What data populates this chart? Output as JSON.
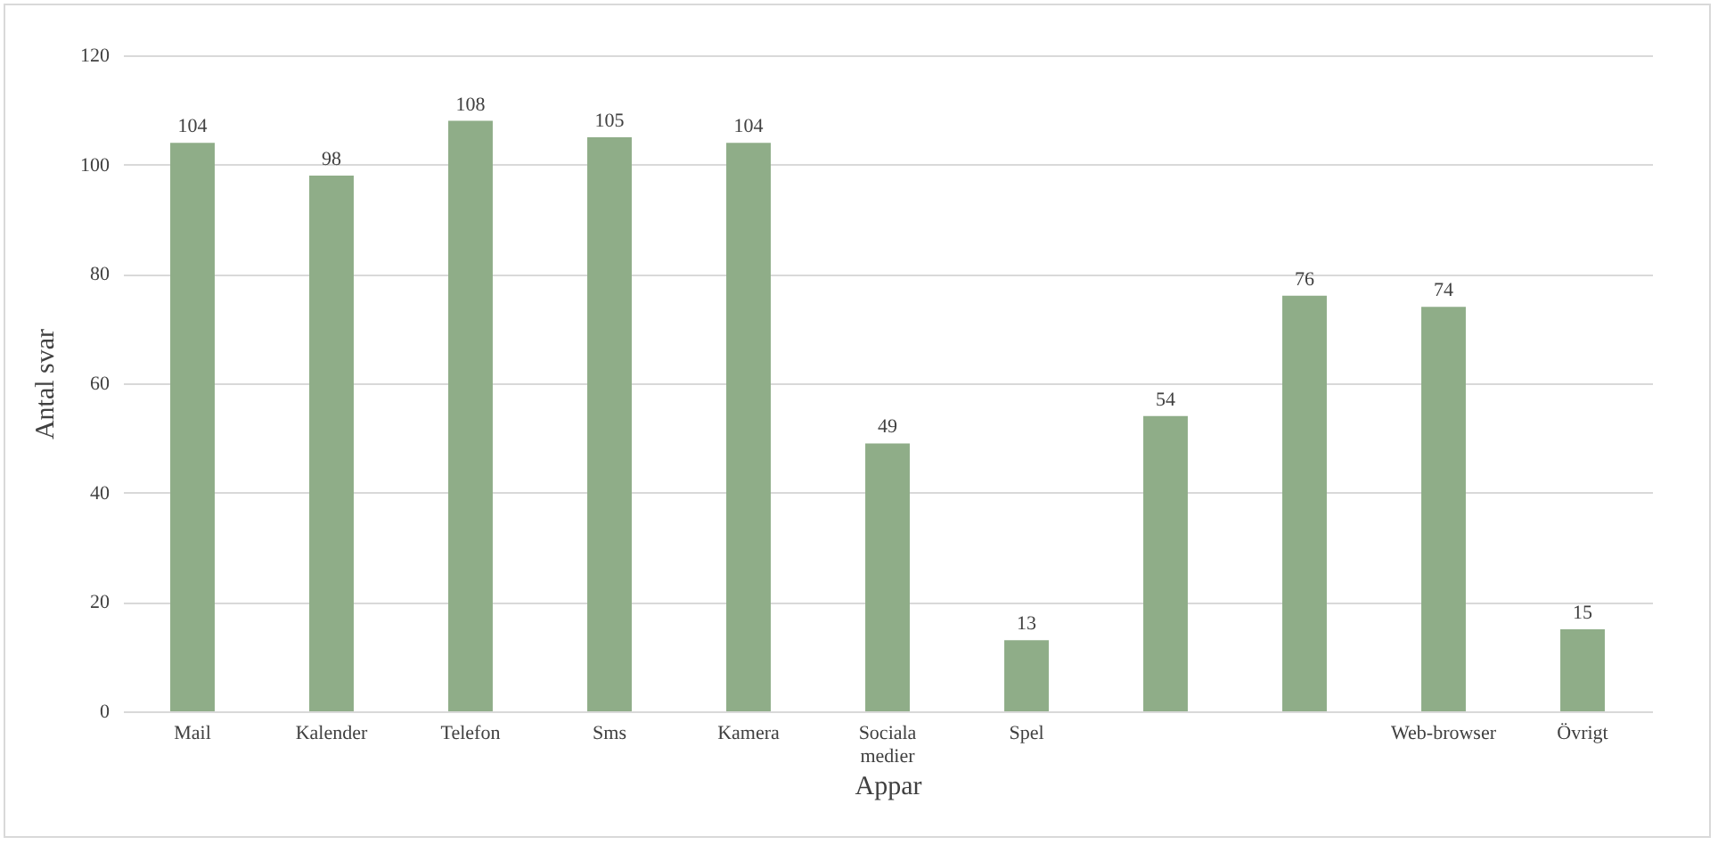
{
  "chart_data": {
    "type": "bar",
    "xlabel": "Appar",
    "ylabel": "Antal svar",
    "categories": [
      "Mail",
      "Kalender",
      "Telefon",
      "Sms",
      "Kamera",
      "Sociala medier",
      "Spel",
      null,
      null,
      "Web-browser",
      "Övrigt"
    ],
    "values": [
      104,
      98,
      108,
      105,
      104,
      49,
      13,
      54,
      76,
      74,
      15
    ],
    "color": "#8fad88",
    "ylim": [
      0,
      120
    ],
    "yticks": [
      0,
      20,
      40,
      60,
      80,
      100,
      120
    ],
    "grid": "y",
    "data_labels": true
  }
}
